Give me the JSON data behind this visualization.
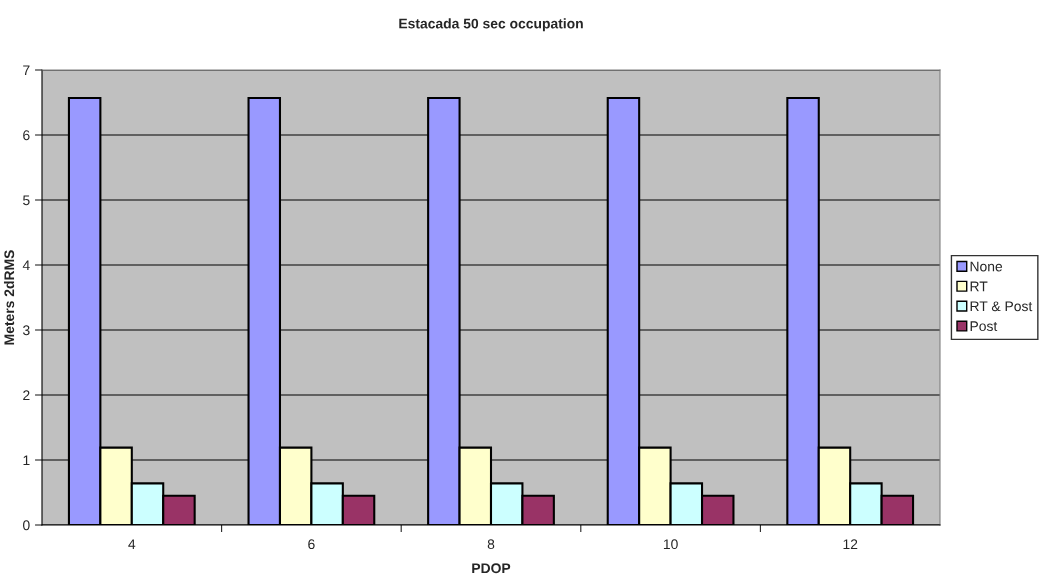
{
  "chart_data": {
    "type": "bar",
    "title": "Estacada 50 sec occupation",
    "xlabel": "PDOP",
    "ylabel": "Meters 2dRMS",
    "categories": [
      "4",
      "6",
      "8",
      "10",
      "12"
    ],
    "series": [
      {
        "name": "None",
        "color": "#9999ff",
        "values": [
          6.57,
          6.57,
          6.57,
          6.57,
          6.57
        ]
      },
      {
        "name": "RT",
        "color": "#ffffcc",
        "values": [
          1.19,
          1.19,
          1.19,
          1.19,
          1.19
        ]
      },
      {
        "name": "RT & Post",
        "color": "#ccffff",
        "values": [
          0.64,
          0.64,
          0.64,
          0.64,
          0.64
        ]
      },
      {
        "name": "Post",
        "color": "#993366",
        "values": [
          0.45,
          0.45,
          0.45,
          0.45,
          0.45
        ]
      }
    ],
    "ylim": [
      0,
      7
    ],
    "yticks": [
      0,
      1,
      2,
      3,
      4,
      5,
      6,
      7
    ],
    "grid": "y",
    "legend": "right"
  }
}
